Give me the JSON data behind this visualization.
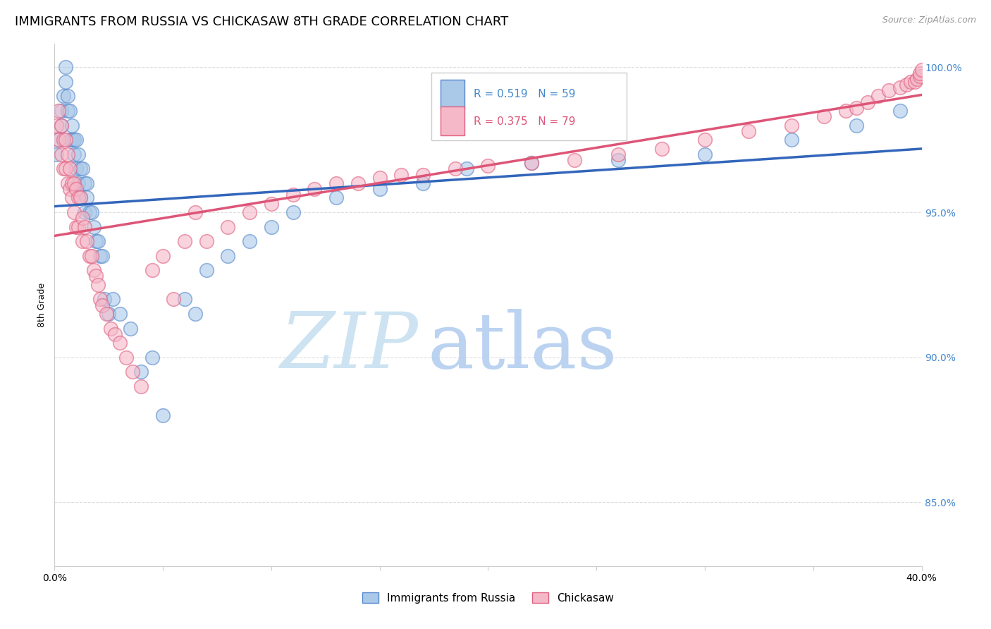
{
  "title": "IMMIGRANTS FROM RUSSIA VS CHICKASAW 8TH GRADE CORRELATION CHART",
  "source_text": "Source: ZipAtlas.com",
  "ylabel": "8th Grade",
  "xlim": [
    0.0,
    0.4
  ],
  "ylim": [
    0.828,
    1.008
  ],
  "xticks": [
    0.0,
    0.05,
    0.1,
    0.15,
    0.2,
    0.25,
    0.3,
    0.35,
    0.4
  ],
  "ytick_positions": [
    0.85,
    0.9,
    0.95,
    1.0
  ],
  "ytick_labels": [
    "85.0%",
    "90.0%",
    "95.0%",
    "100.0%"
  ],
  "legend_blue_label": "Immigrants from Russia",
  "legend_pink_label": "Chickasaw",
  "R_blue": 0.519,
  "N_blue": 59,
  "R_pink": 0.375,
  "N_pink": 79,
  "blue_fill": "#aac8e8",
  "pink_fill": "#f5b8c8",
  "blue_edge": "#5588cc",
  "pink_edge": "#e06080",
  "blue_line": "#3366bb",
  "pink_line": "#dd5577",
  "blue_scatter_x": [
    0.001,
    0.002,
    0.003,
    0.003,
    0.004,
    0.005,
    0.005,
    0.006,
    0.006,
    0.007,
    0.007,
    0.008,
    0.008,
    0.009,
    0.009,
    0.01,
    0.01,
    0.011,
    0.011,
    0.012,
    0.012,
    0.013,
    0.014,
    0.014,
    0.015,
    0.015,
    0.016,
    0.017,
    0.018,
    0.019,
    0.02,
    0.021,
    0.022,
    0.023,
    0.025,
    0.027,
    0.03,
    0.035,
    0.04,
    0.045,
    0.05,
    0.06,
    0.065,
    0.07,
    0.08,
    0.09,
    0.1,
    0.11,
    0.13,
    0.15,
    0.17,
    0.19,
    0.22,
    0.26,
    0.3,
    0.34,
    0.37,
    0.39,
    0.4
  ],
  "blue_scatter_y": [
    0.97,
    0.975,
    0.98,
    0.985,
    0.99,
    0.995,
    1.0,
    0.99,
    0.985,
    0.985,
    0.975,
    0.98,
    0.975,
    0.975,
    0.97,
    0.975,
    0.965,
    0.97,
    0.96,
    0.965,
    0.955,
    0.965,
    0.96,
    0.95,
    0.96,
    0.955,
    0.95,
    0.95,
    0.945,
    0.94,
    0.94,
    0.935,
    0.935,
    0.92,
    0.915,
    0.92,
    0.915,
    0.91,
    0.895,
    0.9,
    0.88,
    0.92,
    0.915,
    0.93,
    0.935,
    0.94,
    0.945,
    0.95,
    0.955,
    0.958,
    0.96,
    0.965,
    0.967,
    0.968,
    0.97,
    0.975,
    0.98,
    0.985,
    0.997
  ],
  "pink_scatter_x": [
    0.001,
    0.002,
    0.002,
    0.003,
    0.003,
    0.004,
    0.004,
    0.005,
    0.005,
    0.006,
    0.006,
    0.007,
    0.007,
    0.008,
    0.008,
    0.009,
    0.009,
    0.01,
    0.01,
    0.011,
    0.011,
    0.012,
    0.013,
    0.013,
    0.014,
    0.015,
    0.016,
    0.017,
    0.018,
    0.019,
    0.02,
    0.021,
    0.022,
    0.024,
    0.026,
    0.028,
    0.03,
    0.033,
    0.036,
    0.04,
    0.045,
    0.05,
    0.055,
    0.06,
    0.065,
    0.07,
    0.08,
    0.09,
    0.1,
    0.11,
    0.12,
    0.13,
    0.14,
    0.15,
    0.16,
    0.17,
    0.185,
    0.2,
    0.22,
    0.24,
    0.26,
    0.28,
    0.3,
    0.32,
    0.34,
    0.355,
    0.365,
    0.37,
    0.375,
    0.38,
    0.385,
    0.39,
    0.393,
    0.395,
    0.397,
    0.398,
    0.399,
    0.399,
    0.4
  ],
  "pink_scatter_y": [
    0.98,
    0.985,
    0.975,
    0.98,
    0.97,
    0.975,
    0.965,
    0.975,
    0.965,
    0.97,
    0.96,
    0.965,
    0.958,
    0.96,
    0.955,
    0.96,
    0.95,
    0.958,
    0.945,
    0.955,
    0.945,
    0.955,
    0.948,
    0.94,
    0.945,
    0.94,
    0.935,
    0.935,
    0.93,
    0.928,
    0.925,
    0.92,
    0.918,
    0.915,
    0.91,
    0.908,
    0.905,
    0.9,
    0.895,
    0.89,
    0.93,
    0.935,
    0.92,
    0.94,
    0.95,
    0.94,
    0.945,
    0.95,
    0.953,
    0.956,
    0.958,
    0.96,
    0.96,
    0.962,
    0.963,
    0.963,
    0.965,
    0.966,
    0.967,
    0.968,
    0.97,
    0.972,
    0.975,
    0.978,
    0.98,
    0.983,
    0.985,
    0.986,
    0.988,
    0.99,
    0.992,
    0.993,
    0.994,
    0.995,
    0.995,
    0.996,
    0.997,
    0.998,
    0.999
  ],
  "watermark_zip": "ZIP",
  "watermark_atlas": "atlas",
  "watermark_color_zip": "#c8dff0",
  "watermark_color_atlas": "#b8d8ee",
  "background_color": "#ffffff",
  "grid_color": "#dddddd",
  "title_fontsize": 13,
  "axis_label_fontsize": 9,
  "tick_fontsize": 10,
  "right_axis_color": "#4488cc"
}
